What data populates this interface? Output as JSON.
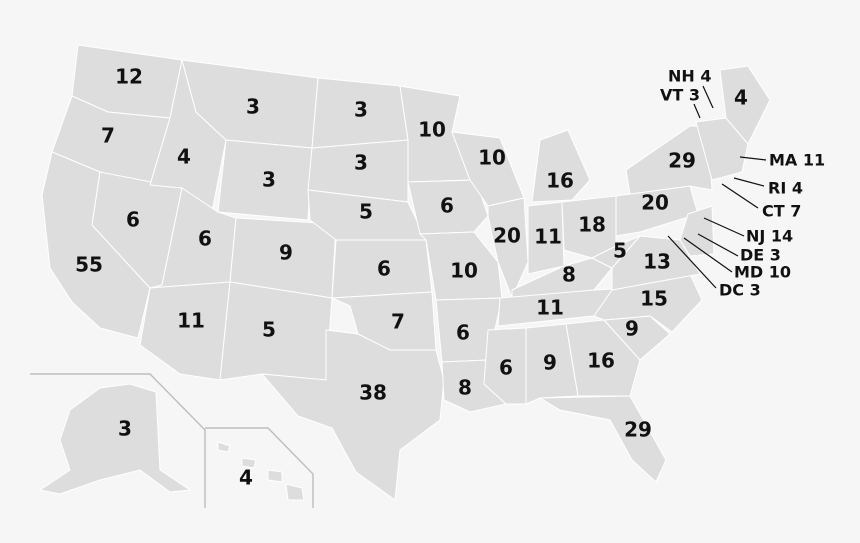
{
  "map": {
    "colors": {
      "background": "#f6f6f6",
      "land": "#dddddd",
      "border": "#ffffff",
      "text": "#111111"
    },
    "states": [
      {
        "id": "WA",
        "label": "12"
      },
      {
        "id": "OR",
        "label": "7"
      },
      {
        "id": "CA",
        "label": "55"
      },
      {
        "id": "NV",
        "label": "6"
      },
      {
        "id": "ID",
        "label": "4"
      },
      {
        "id": "MT",
        "label": "3"
      },
      {
        "id": "WY",
        "label": "3"
      },
      {
        "id": "UT",
        "label": "6"
      },
      {
        "id": "AZ",
        "label": "11"
      },
      {
        "id": "CO",
        "label": "9"
      },
      {
        "id": "NM",
        "label": "5"
      },
      {
        "id": "ND",
        "label": "3"
      },
      {
        "id": "SD",
        "label": "3"
      },
      {
        "id": "NE",
        "label": "5"
      },
      {
        "id": "KS",
        "label": "6"
      },
      {
        "id": "OK",
        "label": "7"
      },
      {
        "id": "TX",
        "label": "38"
      },
      {
        "id": "MN",
        "label": "10"
      },
      {
        "id": "IA",
        "label": "6"
      },
      {
        "id": "MO",
        "label": "10"
      },
      {
        "id": "AR",
        "label": "6"
      },
      {
        "id": "LA",
        "label": "8"
      },
      {
        "id": "WI",
        "label": "10"
      },
      {
        "id": "IL",
        "label": "20"
      },
      {
        "id": "MI",
        "label": "16"
      },
      {
        "id": "IN",
        "label": "11"
      },
      {
        "id": "OH",
        "label": "18"
      },
      {
        "id": "KY",
        "label": "8"
      },
      {
        "id": "TN",
        "label": "11"
      },
      {
        "id": "MS",
        "label": "6"
      },
      {
        "id": "AL",
        "label": "9"
      },
      {
        "id": "GA",
        "label": "16"
      },
      {
        "id": "FL",
        "label": "29"
      },
      {
        "id": "SC",
        "label": "9"
      },
      {
        "id": "NC",
        "label": "15"
      },
      {
        "id": "VA",
        "label": "13"
      },
      {
        "id": "WV",
        "label": "5"
      },
      {
        "id": "PA",
        "label": "20"
      },
      {
        "id": "NY",
        "label": "29"
      },
      {
        "id": "ME",
        "label": "4"
      },
      {
        "id": "AK",
        "label": "3"
      },
      {
        "id": "HI",
        "label": "4"
      }
    ],
    "callouts": [
      {
        "id": "NH",
        "label": "NH 4"
      },
      {
        "id": "VT",
        "label": "VT 3"
      },
      {
        "id": "MA",
        "label": "MA 11"
      },
      {
        "id": "RI",
        "label": "RI 4"
      },
      {
        "id": "CT",
        "label": "CT 7"
      },
      {
        "id": "NJ",
        "label": "NJ 14"
      },
      {
        "id": "DE",
        "label": "DE 3"
      },
      {
        "id": "MD",
        "label": "MD 10"
      },
      {
        "id": "DC",
        "label": "DC 3"
      }
    ]
  }
}
